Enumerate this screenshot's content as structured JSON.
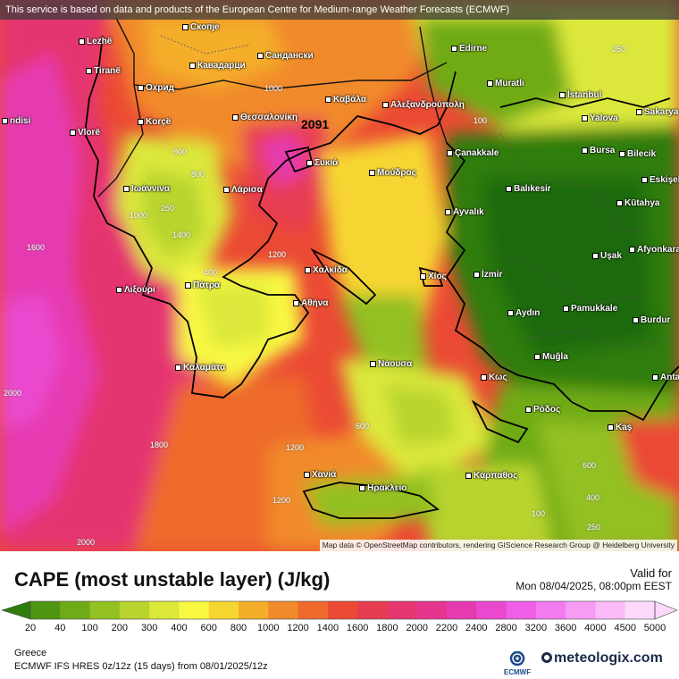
{
  "banner": "This service is based on data and products of the European Centre for Medium-range Weather Forecasts (ECMWF)",
  "attribution": "Map data © OpenStreetMap contributors, rendering GIScience Research Group @ Heidelberg University",
  "title": "CAPE (most unstable layer) (J/kg)",
  "valid_label": "Valid for",
  "valid_time": "Mon 08/04/2025, 08:00pm EEST",
  "region": "Greece",
  "model": "ECMWF IFS HRES 0z/12z (15 days) from 08/01/2025/12z",
  "ecmwf_logo": "ECMWF",
  "meteologix_logo": "meteologix.com",
  "max_value": "2091",
  "colorbar": {
    "ticks": [
      "20",
      "40",
      "100",
      "200",
      "300",
      "400",
      "600",
      "800",
      "1000",
      "1200",
      "1400",
      "1600",
      "1800",
      "2000",
      "2200",
      "2400",
      "2800",
      "3200",
      "3600",
      "4000",
      "4500",
      "5000"
    ],
    "colors": [
      "#2f7d0e",
      "#4f9612",
      "#6fab19",
      "#93c023",
      "#b8d42e",
      "#dbe83a",
      "#f8f842",
      "#f6d531",
      "#f4ae2a",
      "#f18a2a",
      "#ee6a2c",
      "#eb4a34",
      "#e83c52",
      "#e5366f",
      "#e4368f",
      "#e63bb0",
      "#ea48cf",
      "#ee5ee6",
      "#f37bf0",
      "#f79bf5",
      "#fabbf8",
      "#fdd9fb"
    ]
  },
  "cities": [
    {
      "name": "Lezhë"
    },
    {
      "name": "Скопје"
    },
    {
      "name": "Кавадарци"
    },
    {
      "name": "Сандански"
    },
    {
      "name": "Edirne"
    },
    {
      "name": "Tiranë"
    },
    {
      "name": "Охрид"
    },
    {
      "name": "Muratlı"
    },
    {
      "name": "İstanbul"
    },
    {
      "name": "Καβάλα"
    },
    {
      "name": "Korçë"
    },
    {
      "name": "Θεσσαλονίκη"
    },
    {
      "name": "Αλεξανδρούπολη"
    },
    {
      "name": "Yalova"
    },
    {
      "name": "Sakarya"
    },
    {
      "name": "Vlorë"
    },
    {
      "name": "ndisi"
    },
    {
      "name": "Çanakkale"
    },
    {
      "name": "Bursa"
    },
    {
      "name": "Bilecik"
    },
    {
      "name": "Συκιά"
    },
    {
      "name": "Μούδρος"
    },
    {
      "name": "Ιωάννινα"
    },
    {
      "name": "Λάρισα"
    },
    {
      "name": "Balıkesir"
    },
    {
      "name": "Eskişehir"
    },
    {
      "name": "Kütahya"
    },
    {
      "name": "Ayvalık"
    },
    {
      "name": "Afyonkarahisar"
    },
    {
      "name": "Uşak"
    },
    {
      "name": "Χαλκίδα"
    },
    {
      "name": "Λιξούρι"
    },
    {
      "name": "Πάτρα"
    },
    {
      "name": "Χίος"
    },
    {
      "name": "İzmir"
    },
    {
      "name": "Αθήνα"
    },
    {
      "name": "Aydın"
    },
    {
      "name": "Pamukkale"
    },
    {
      "name": "Burdur"
    },
    {
      "name": "Καλαμάτα"
    },
    {
      "name": "Νάουσα"
    },
    {
      "name": "Muğla"
    },
    {
      "name": "Κως"
    },
    {
      "name": "Anta"
    },
    {
      "name": "Ρόδος"
    },
    {
      "name": "Kaş"
    },
    {
      "name": "Χανιά"
    },
    {
      "name": "Ηράκλειο"
    },
    {
      "name": "Κάρπαθος"
    }
  ],
  "contours": [
    "1600",
    "1000",
    "1400",
    "600",
    "250",
    "400",
    "2000",
    "1800",
    "1200",
    "800",
    "100",
    "500",
    "150"
  ]
}
